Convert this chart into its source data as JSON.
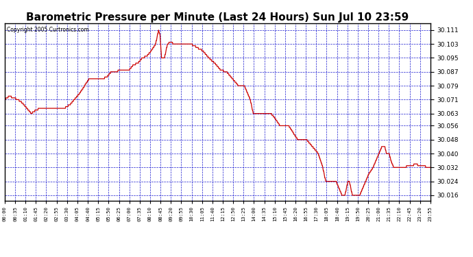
{
  "title": "Barometric Pressure per Minute (Last 24 Hours) Sun Jul 10 23:59",
  "copyright": "Copyright 2005 Curtronics.com",
  "title_fontsize": 11,
  "line_color": "#cc0000",
  "background_color": "#ffffff",
  "plot_bg_color": "#ffffff",
  "grid_color": "#0000cc",
  "yticks": [
    30.016,
    30.024,
    30.032,
    30.04,
    30.048,
    30.056,
    30.063,
    30.071,
    30.079,
    30.087,
    30.095,
    30.103,
    30.111
  ],
  "ylim": [
    30.013,
    30.115
  ],
  "xtick_labels": [
    "00:00",
    "00:35",
    "01:10",
    "01:45",
    "02:20",
    "02:55",
    "03:30",
    "04:05",
    "04:40",
    "05:15",
    "05:50",
    "06:25",
    "07:00",
    "07:35",
    "08:10",
    "08:45",
    "09:20",
    "09:55",
    "10:30",
    "11:05",
    "11:40",
    "12:15",
    "12:50",
    "13:25",
    "14:00",
    "14:35",
    "15:10",
    "15:45",
    "16:20",
    "16:55",
    "17:30",
    "18:05",
    "18:40",
    "19:15",
    "19:50",
    "20:25",
    "21:00",
    "21:35",
    "22:10",
    "22:45",
    "23:20",
    "23:55"
  ]
}
